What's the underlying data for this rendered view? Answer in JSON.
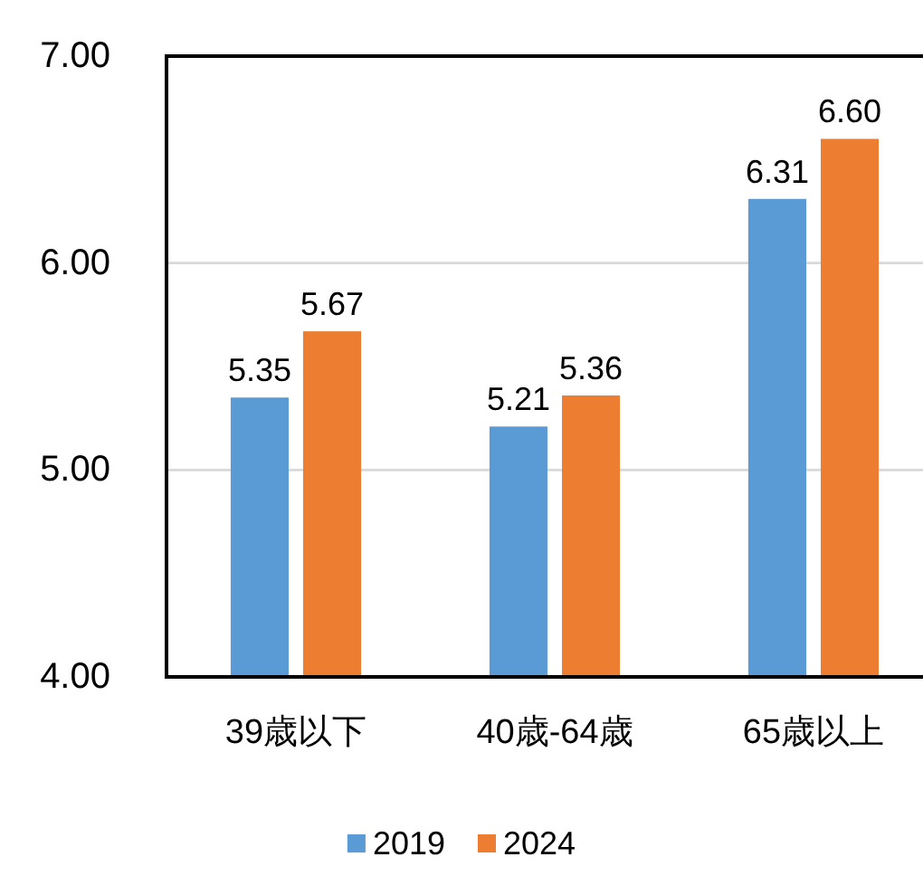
{
  "chart_data": {
    "type": "bar",
    "categories": [
      "39歳以下",
      "40歳-64歳",
      "65歳以上"
    ],
    "series": [
      {
        "name": "2019",
        "color": "#5b9bd5",
        "values": [
          5.35,
          5.21,
          6.31
        ],
        "value_labels": [
          "5.35",
          "5.21",
          "6.31"
        ]
      },
      {
        "name": "2024",
        "color": "#ed7d31",
        "values": [
          5.67,
          5.36,
          6.6
        ],
        "value_labels": [
          "5.67",
          "5.36",
          "6.60"
        ]
      }
    ],
    "ylim": [
      4,
      7
    ],
    "yticks": [
      {
        "value": 4,
        "label": "4.00"
      },
      {
        "value": 5,
        "label": "5.00"
      },
      {
        "value": 6,
        "label": "6.00"
      },
      {
        "value": 7,
        "label": "7.00"
      }
    ],
    "grid": "y",
    "legend": "bottom"
  }
}
